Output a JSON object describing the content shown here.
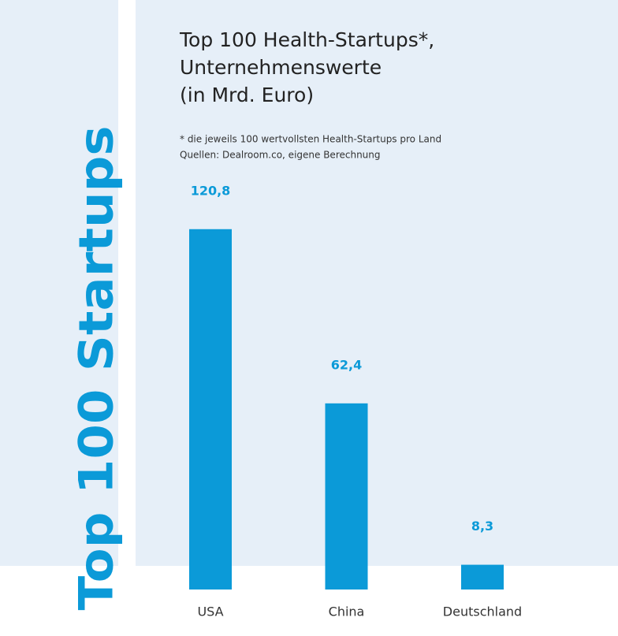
{
  "chart_data": {
    "type": "bar",
    "side_label": "Top 100 Startups",
    "title": [
      "Top 100 Health-Startups*,",
      "Unternehmenswerte",
      "(in Mrd. Euro)"
    ],
    "notes": [
      "* die jeweils 100 wertvollsten Health-Startups pro Land",
      "Quellen: Dealroom.co, eigene Berechnung"
    ],
    "categories": [
      "USA",
      "China",
      "Deutschland"
    ],
    "values": [
      120.8,
      62.4,
      8.3
    ],
    "value_labels": [
      "120,8",
      "62,4",
      "8,3"
    ],
    "color": "#0b9ad8"
  }
}
